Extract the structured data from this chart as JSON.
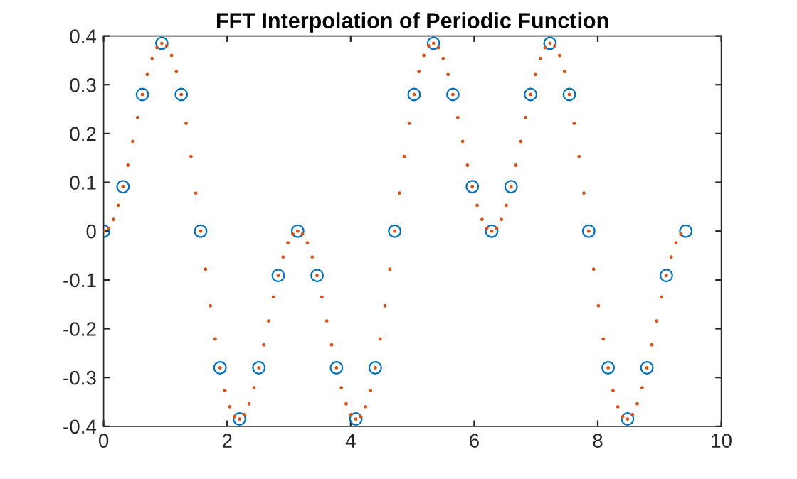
{
  "chart_data": {
    "type": "scatter",
    "title": "FFT Interpolation of Periodic Function",
    "xlim": [
      0,
      10
    ],
    "xticks": [
      0,
      2,
      4,
      6,
      8,
      10
    ],
    "ylim": [
      -0.4,
      0.4
    ],
    "yticks": [
      -0.4,
      -0.3,
      -0.2,
      -0.1,
      0,
      0.1,
      0.2,
      0.3,
      0.4
    ],
    "grid": false,
    "legend": false,
    "series": [
      {
        "color": "#0072bd",
        "marker": "circle",
        "x": [
          0.0,
          0.314,
          0.628,
          0.942,
          1.257,
          1.571,
          1.885,
          2.199,
          2.513,
          2.827,
          3.142,
          3.456,
          3.77,
          4.084,
          4.398,
          4.712,
          5.027,
          5.341,
          5.655,
          5.969,
          6.283,
          6.597,
          6.912,
          7.226,
          7.54,
          7.854,
          8.168,
          8.482,
          8.796,
          9.111,
          9.425
        ],
        "values": [
          0.0,
          0.091,
          0.28,
          0.385,
          0.28,
          0.0,
          -0.28,
          -0.385,
          -0.28,
          -0.091,
          0.0,
          -0.091,
          -0.28,
          -0.385,
          -0.28,
          0.0,
          0.28,
          0.385,
          0.28,
          0.091,
          0.0,
          0.091,
          0.28,
          0.385,
          0.28,
          0.0,
          -0.28,
          -0.385,
          -0.28,
          -0.091,
          0.0
        ]
      },
      {
        "color": "#d95319",
        "marker": "dot",
        "x": [
          0,
          0.079,
          0.157,
          0.236,
          0.314,
          0.393,
          0.471,
          0.55,
          0.628,
          0.707,
          0.785,
          0.864,
          0.942,
          1.021,
          1.1,
          1.178,
          1.257,
          1.335,
          1.414,
          1.492,
          1.571,
          1.649,
          1.728,
          1.806,
          1.885,
          1.963,
          2.042,
          2.121,
          2.199,
          2.278,
          2.356,
          2.435,
          2.513,
          2.592,
          2.67,
          2.749,
          2.827,
          2.906,
          2.985,
          3.063,
          3.142,
          3.22,
          3.299,
          3.377,
          3.456,
          3.534,
          3.613,
          3.691,
          3.77,
          3.848,
          3.927,
          4.006,
          4.084,
          4.163,
          4.241,
          4.32,
          4.398,
          4.477,
          4.555,
          4.634,
          4.712,
          4.791,
          4.869,
          4.948,
          5.027,
          5.105,
          5.184,
          5.262,
          5.341,
          5.419,
          5.498,
          5.576,
          5.655,
          5.733,
          5.812,
          5.89,
          5.969,
          6.048,
          6.126,
          6.205,
          6.283,
          6.362,
          6.44,
          6.519,
          6.597,
          6.676,
          6.754,
          6.833,
          6.912,
          6.99,
          7.069,
          7.147,
          7.226,
          7.304,
          7.383,
          7.461,
          7.54,
          7.618,
          7.697,
          7.775,
          7.854,
          7.933,
          8.011,
          8.09,
          8.168,
          8.247,
          8.325,
          8.404,
          8.482,
          8.561,
          8.639,
          8.718,
          8.796,
          8.875,
          8.954,
          9.032,
          9.111,
          9.189,
          9.268,
          9.346
        ],
        "values": [
          0.0,
          0.006,
          0.024,
          0.053,
          0.091,
          0.135,
          0.184,
          0.233,
          0.28,
          0.321,
          0.354,
          0.376,
          0.385,
          0.38,
          0.36,
          0.327,
          0.28,
          0.221,
          0.153,
          0.078,
          0.0,
          -0.078,
          -0.153,
          -0.221,
          -0.28,
          -0.327,
          -0.36,
          -0.38,
          -0.385,
          -0.376,
          -0.354,
          -0.321,
          -0.28,
          -0.233,
          -0.184,
          -0.135,
          -0.091,
          -0.053,
          -0.024,
          -0.006,
          0.0,
          -0.006,
          -0.024,
          -0.053,
          -0.091,
          -0.135,
          -0.184,
          -0.233,
          -0.28,
          -0.321,
          -0.354,
          -0.376,
          -0.385,
          -0.38,
          -0.36,
          -0.327,
          -0.28,
          -0.221,
          -0.153,
          -0.078,
          0.0,
          0.078,
          0.153,
          0.221,
          0.28,
          0.327,
          0.36,
          0.38,
          0.385,
          0.376,
          0.354,
          0.321,
          0.28,
          0.233,
          0.184,
          0.135,
          0.091,
          0.053,
          0.024,
          0.006,
          0.0,
          0.006,
          0.024,
          0.053,
          0.091,
          0.135,
          0.184,
          0.233,
          0.28,
          0.321,
          0.354,
          0.376,
          0.385,
          0.38,
          0.36,
          0.327,
          0.28,
          0.221,
          0.153,
          0.078,
          0.0,
          -0.078,
          -0.153,
          -0.221,
          -0.28,
          -0.327,
          -0.36,
          -0.38,
          -0.385,
          -0.376,
          -0.354,
          -0.321,
          -0.28,
          -0.233,
          -0.184,
          -0.135,
          -0.091,
          -0.053,
          -0.024,
          -0.006
        ]
      }
    ]
  }
}
